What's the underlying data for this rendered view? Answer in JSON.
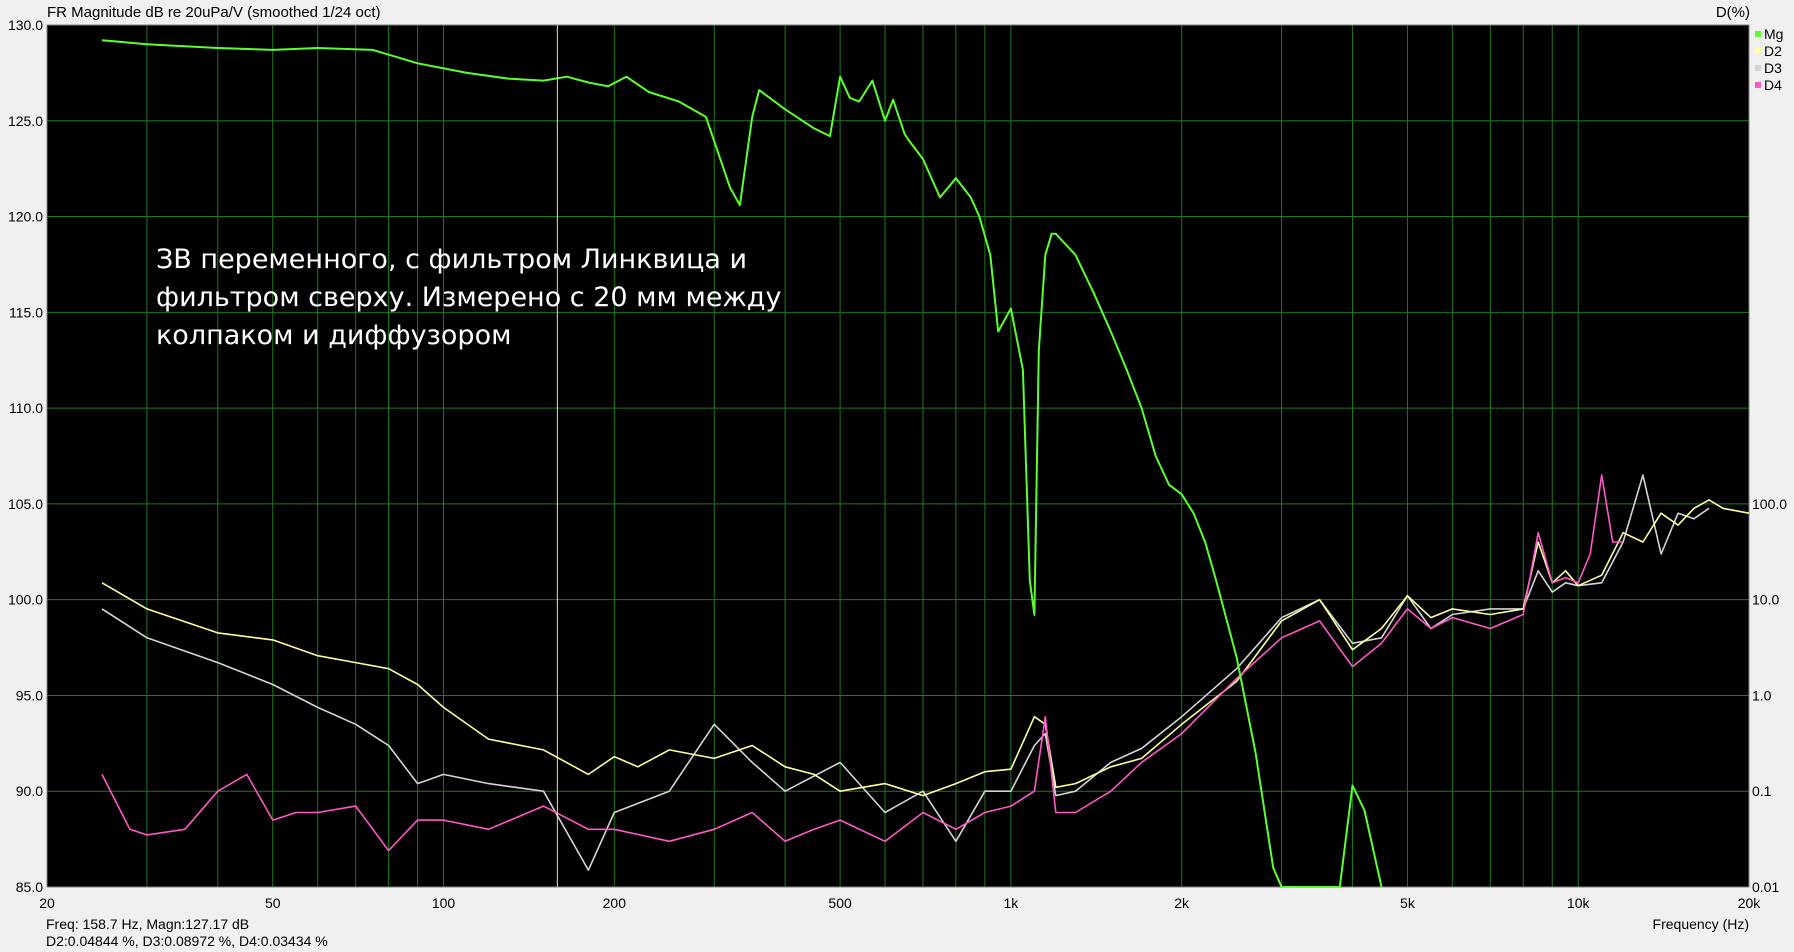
{
  "header": {
    "title": "FR Magnitude dB re 20uPa/V (smoothed 1/24 oct)",
    "right_axis_title": "D(%)"
  },
  "footer": {
    "line1": "Freq: 158.7 Hz, Magn:127.17 dB",
    "line2": "D2:0.04844 %, D3:0.08972 %, D4:0.03434 %",
    "xlabel": "Frequency (Hz)"
  },
  "annotation": {
    "lines": [
      "ЗВ переменного, с фильтром Линквица и",
      "фильтром сверху. Измерено с 20 мм между",
      "колпаком и диффузором"
    ]
  },
  "colors": {
    "plot_bg": "#000000",
    "grid": "#1e7a1e",
    "cursor": "#e8e8a0",
    "Mg": "#5cff2e",
    "D2": "#ffffa0",
    "D3": "#d4d4d4",
    "D4": "#ff58c8"
  },
  "chart_data": {
    "type": "line",
    "title": "FR Magnitude dB re 20uPa/V (smoothed 1/24 oct)",
    "xlabel": "Frequency (Hz)",
    "ylabel": "",
    "y2label": "D(%)",
    "xscale": "log",
    "xlim": [
      20,
      20000
    ],
    "ylim": [
      85.0,
      130.0
    ],
    "y2scale": "log",
    "y2lim": [
      0.01,
      100.0
    ],
    "x_ticks": [
      20,
      50,
      100,
      200,
      500,
      1000,
      2000,
      5000,
      10000,
      20000
    ],
    "x_tick_labels": [
      "20",
      "50",
      "100",
      "200",
      "500",
      "1k",
      "2k",
      "5k",
      "10k",
      "20k"
    ],
    "y_ticks": [
      85.0,
      90.0,
      95.0,
      100.0,
      105.0,
      110.0,
      115.0,
      120.0,
      125.0,
      130.0
    ],
    "y_tick_labels": [
      "85.0",
      "90.0",
      "95.0",
      "100.0",
      "105.0",
      "110.0",
      "115.0",
      "120.0",
      "125.0",
      "130.0"
    ],
    "y2_ticks": [
      0.01,
      0.1,
      1.0,
      10.0,
      100.0
    ],
    "y2_tick_labels": [
      "0.01",
      "0.1",
      "1.0",
      "10.0",
      "100.0"
    ],
    "grid": true,
    "legend_position": "top-right",
    "cursor_x": 158.7,
    "series": [
      {
        "name": "Mg",
        "axis": "left",
        "x": [
          25,
          30,
          40,
          50,
          60,
          75,
          90,
          110,
          130,
          150,
          165,
          180,
          195,
          210,
          230,
          260,
          290,
          320,
          333,
          350,
          360,
          400,
          450,
          480,
          500,
          520,
          540,
          570,
          600,
          620,
          650,
          660,
          700,
          750,
          800,
          850,
          880,
          920,
          950,
          1000,
          1050,
          1080,
          1100,
          1120,
          1150,
          1180,
          1200,
          1300,
          1400,
          1500,
          1600,
          1700,
          1800,
          1900,
          2000,
          2100,
          2200,
          2300,
          2500,
          2700,
          2900,
          3000,
          3200,
          3800,
          4000,
          4200,
          4500
        ],
        "y": [
          129.2,
          129.0,
          128.8,
          128.7,
          128.8,
          128.7,
          128.0,
          127.5,
          127.2,
          127.1,
          127.3,
          127.0,
          126.8,
          127.3,
          126.5,
          126.0,
          125.2,
          121.5,
          120.6,
          125.2,
          126.6,
          125.6,
          124.6,
          124.2,
          127.3,
          126.2,
          126.0,
          127.1,
          125.0,
          126.1,
          124.3,
          124.0,
          123.0,
          121.0,
          122.0,
          121.0,
          120.0,
          118.0,
          114.0,
          115.2,
          112.0,
          101.0,
          99.2,
          113.0,
          118.0,
          119.1,
          119.1,
          118.0,
          116.0,
          114.0,
          112.0,
          110.0,
          107.5,
          106.0,
          105.5,
          104.5,
          103.0,
          101.0,
          97.0,
          92.0,
          86.0,
          85.0,
          85.0,
          85.0,
          90.3,
          89.0,
          85.0
        ]
      },
      {
        "name": "D2",
        "axis": "right",
        "x": [
          25,
          30,
          40,
          50,
          60,
          70,
          80,
          90,
          100,
          120,
          150,
          180,
          200,
          220,
          250,
          300,
          350,
          400,
          450,
          500,
          600,
          700,
          800,
          900,
          1000,
          1100,
          1150,
          1200,
          1300,
          1500,
          1700,
          2000,
          2500,
          3000,
          3500,
          4000,
          4500,
          5000,
          5500,
          6000,
          7000,
          8000,
          8500,
          9000,
          9500,
          10000,
          11000,
          12000,
          13000,
          14000,
          15000,
          16000,
          17000,
          18000,
          20000
        ],
        "y": [
          15.0,
          8.0,
          4.5,
          3.8,
          2.6,
          2.2,
          1.9,
          1.3,
          0.75,
          0.35,
          0.27,
          0.15,
          0.23,
          0.18,
          0.27,
          0.22,
          0.3,
          0.18,
          0.15,
          0.1,
          0.12,
          0.09,
          0.12,
          0.16,
          0.17,
          0.6,
          0.5,
          0.11,
          0.12,
          0.18,
          0.22,
          0.5,
          1.4,
          6.0,
          10.0,
          3.0,
          5.0,
          11.0,
          6.5,
          8.0,
          7.0,
          8.0,
          40.0,
          15.0,
          20.0,
          14.0,
          18.0,
          50.0,
          40.0,
          80.0,
          60.0,
          90.0,
          110.0,
          90.0,
          80.0
        ]
      },
      {
        "name": "D3",
        "axis": "right",
        "x": [
          25,
          30,
          40,
          50,
          60,
          70,
          80,
          90,
          100,
          120,
          150,
          180,
          200,
          250,
          300,
          350,
          400,
          500,
          600,
          700,
          800,
          900,
          1000,
          1100,
          1150,
          1200,
          1300,
          1500,
          1700,
          2000,
          2500,
          3000,
          3500,
          4000,
          4500,
          5000,
          5500,
          6000,
          7000,
          8000,
          8500,
          9000,
          9500,
          10000,
          11000,
          12000,
          13000,
          14000,
          15000,
          16000,
          17000
        ],
        "y": [
          8.0,
          4.0,
          2.2,
          1.3,
          0.75,
          0.5,
          0.3,
          0.12,
          0.15,
          0.12,
          0.1,
          0.015,
          0.06,
          0.1,
          0.5,
          0.2,
          0.1,
          0.2,
          0.06,
          0.1,
          0.03,
          0.1,
          0.1,
          0.3,
          0.4,
          0.09,
          0.1,
          0.2,
          0.28,
          0.6,
          1.9,
          6.5,
          10.0,
          3.5,
          4.0,
          11.0,
          5.0,
          7.0,
          8.0,
          8.0,
          20.0,
          12.0,
          15.0,
          14.0,
          15.0,
          40.0,
          200.0,
          30.0,
          80.0,
          70.0,
          90.0
        ]
      },
      {
        "name": "D4",
        "axis": "right",
        "x": [
          25,
          28,
          30,
          35,
          40,
          45,
          50,
          55,
          60,
          70,
          80,
          90,
          100,
          120,
          150,
          180,
          200,
          250,
          300,
          350,
          400,
          450,
          500,
          600,
          700,
          800,
          900,
          1000,
          1100,
          1150,
          1200,
          1300,
          1500,
          1700,
          2000,
          2500,
          3000,
          3500,
          4000,
          4500,
          5000,
          5500,
          6000,
          7000,
          8000,
          8500,
          9000,
          9500,
          10000,
          10500,
          11000,
          11500,
          12000
        ],
        "y": [
          0.15,
          0.04,
          0.035,
          0.04,
          0.1,
          0.15,
          0.05,
          0.06,
          0.06,
          0.07,
          0.024,
          0.05,
          0.05,
          0.04,
          0.07,
          0.04,
          0.04,
          0.03,
          0.04,
          0.06,
          0.03,
          0.04,
          0.05,
          0.03,
          0.06,
          0.04,
          0.06,
          0.07,
          0.1,
          0.6,
          0.06,
          0.06,
          0.1,
          0.2,
          0.4,
          1.5,
          4.0,
          6.0,
          2.0,
          3.5,
          8.0,
          5.0,
          6.5,
          5.0,
          7.0,
          50.0,
          15.0,
          17.0,
          15.0,
          30.0,
          200.0,
          40.0,
          40.0
        ]
      }
    ]
  }
}
